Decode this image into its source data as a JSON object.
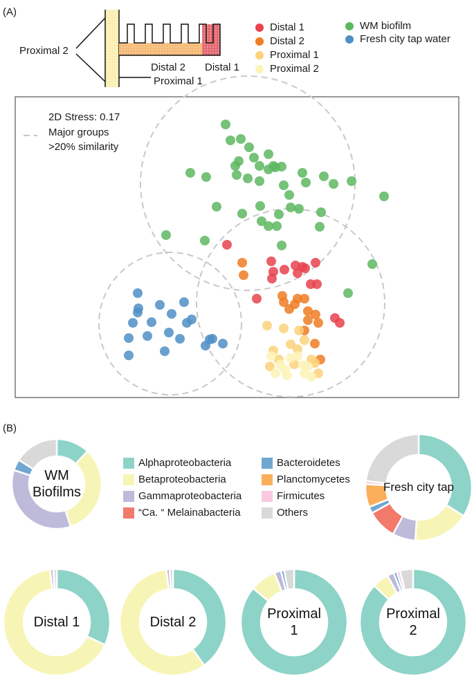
{
  "panels": [
    "(A)",
    "(B)"
  ],
  "diagram": {
    "labels": [
      "Proximal 2",
      "Distal 2",
      "Distal 1",
      "Proximal 1"
    ]
  },
  "chart_data": [
    {
      "type": "scatter",
      "annotations": [
        "2D Stress: 0.17",
        "Major groups",
        ">20% similarity"
      ],
      "xlim": [
        0,
        641
      ],
      "ylim": [
        0,
        435
      ],
      "series": [
        {
          "name": "Distal 1",
          "color": "#e8434f",
          "x": [
            306,
            370,
            373,
            371,
            405,
            415,
            408,
            419,
            434,
            436,
            427,
            349,
            462,
            469,
            389
          ],
          "values": [
            221,
            197,
            182,
            172,
            191,
            189,
            180,
            187,
            195,
            164,
            164,
            143,
            115,
            108,
            185
          ]
        },
        {
          "name": "Distal 2",
          "color": "#ee7d24",
          "x": [
            328,
            330,
            386,
            388,
            408,
            418,
            404,
            423,
            434,
            438,
            423,
            433,
            441,
            418,
            396
          ],
          "values": [
            195,
            177,
            147,
            138,
            143,
            143,
            135,
            125,
            120,
            108,
            112,
            78,
            55,
            97,
            128
          ]
        },
        {
          "name": "Proximal 1",
          "color": "#fcd27a",
          "x": [
            364,
            388,
            410,
            418,
            373,
            398,
            408,
            381,
            428,
            438,
            403,
            368,
            433
          ],
          "values": [
            104,
            100,
            97,
            83,
            68,
            77,
            70,
            55,
            55,
            35,
            48,
            45,
            50
          ]
        },
        {
          "name": "Proximal 2",
          "color": "#fdf3b6",
          "x": [
            370,
            383,
            390,
            398,
            416,
            418,
            393,
            376,
            408,
            423,
            428
          ],
          "values": [
            60,
            48,
            40,
            57,
            47,
            35,
            32,
            35,
            60,
            45,
            30
          ]
        },
        {
          "name": "WM biofilm",
          "color": "#5db760",
          "x": [
            304,
            311,
            326,
            338,
            323,
            345,
            318,
            353,
            366,
            373,
            385,
            366,
            376,
            336,
            353,
            320,
            253,
            276,
            388,
            415,
            446,
            460,
            486,
            533,
            291,
            328,
            356,
            366,
            378,
            381,
            354,
            398,
            410,
            442,
            440,
            385,
            274,
            218,
            516,
            481,
            420,
            396
          ],
          "values": [
            395,
            372,
            374,
            362,
            342,
            347,
            335,
            335,
            352,
            335,
            334,
            330,
            333,
            317,
            313,
            322,
            325,
            319,
            307,
            325,
            320,
            309,
            313,
            291,
            276,
            266,
            255,
            248,
            248,
            265,
            277,
            275,
            273,
            268,
            247,
            220,
            227,
            235,
            193,
            151,
            311,
            293
          ]
        },
        {
          "name": "Fresh city tap water",
          "color": "#4f8fc6",
          "x": [
            177,
            209,
            244,
            178,
            226,
            170,
            248,
            255,
            197,
            191,
            238,
            164,
            222,
            281,
            275,
            285,
            300,
            164,
            216,
            177
          ],
          "values": [
            151,
            134,
            138,
            129,
            121,
            108,
            108,
            113,
            109,
            89,
            85,
            86,
            94,
            84,
            75,
            85,
            78,
            61,
            67,
            123
          ]
        }
      ]
    },
    {
      "type": "donut",
      "categories": [
        "Alphaproteobacteria",
        "Betaproteobacteria",
        "Gammaproteobacteria",
        "“Ca. “ Melainabacteria",
        "Bacteroidetes",
        "Planctomycetes",
        "Firmicutes",
        "Others"
      ],
      "colors": [
        "#8dd3c7",
        "#f7f5b5",
        "#bebada",
        "#f3796b",
        "#6fa7d1",
        "#fbaf5a",
        "#f9c9e0",
        "#d9d9d9"
      ],
      "series": [
        {
          "name": "WM Biofilms",
          "values": [
            12,
            33,
            35,
            0,
            4,
            0,
            0,
            16
          ]
        },
        {
          "name": "Fresh city tap",
          "values": [
            34,
            17,
            7,
            9,
            2,
            7,
            1,
            23
          ]
        },
        {
          "name": "Distal 1",
          "values": [
            32,
            66,
            1,
            0,
            0,
            0,
            0,
            1
          ]
        },
        {
          "name": "Distal 2",
          "values": [
            40,
            58,
            1,
            0,
            0,
            0,
            0,
            1
          ]
        },
        {
          "name": "Proximal 1",
          "values": [
            86,
            8,
            2,
            0,
            1,
            0,
            0,
            3
          ]
        },
        {
          "name": "Proximal 2",
          "values": [
            87,
            5,
            2,
            0,
            1,
            0,
            1,
            4
          ]
        }
      ]
    }
  ]
}
